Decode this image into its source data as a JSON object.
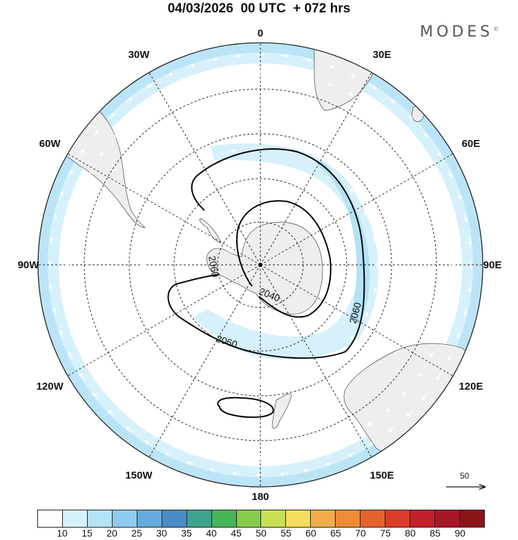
{
  "title": "04/03/2026  00 UTC  + 072 hrs",
  "brand": "MODES",
  "brand_mark": "©",
  "longitude_labels": [
    {
      "text": "0",
      "lon": 0
    },
    {
      "text": "30E",
      "lon": 30
    },
    {
      "text": "60E",
      "lon": 60
    },
    {
      "text": "90E",
      "lon": 90
    },
    {
      "text": "120E",
      "lon": 120
    },
    {
      "text": "150E",
      "lon": 150
    },
    {
      "text": "180",
      "lon": 180
    },
    {
      "text": "150W",
      "lon": -150
    },
    {
      "text": "120W",
      "lon": -120
    },
    {
      "text": "90W",
      "lon": -90
    },
    {
      "text": "60W",
      "lon": -60
    },
    {
      "text": "30W",
      "lon": -30
    }
  ],
  "contour_labels": [
    "2060",
    "2040",
    "2060",
    "2060"
  ],
  "reference_vector": {
    "label": "50",
    "icon": "arrow-right-icon"
  },
  "colorbar": {
    "colors": [
      "#ffffff",
      "#d6f1fb",
      "#b4e2f6",
      "#8ecdf0",
      "#66a9dc",
      "#4a8cc6",
      "#3ea38e",
      "#47b457",
      "#88cb4c",
      "#c6df52",
      "#f5de5a",
      "#f3ad48",
      "#ef8a35",
      "#e7612d",
      "#dc3b2b",
      "#c41f2a",
      "#a81726",
      "#8c1419"
    ],
    "labels": [
      "10",
      "15",
      "20",
      "25",
      "30",
      "35",
      "40",
      "45",
      "50",
      "55",
      "60",
      "65",
      "70",
      "75",
      "80",
      "85",
      "90"
    ]
  },
  "colors": {
    "land": "#eeeeee",
    "shade_light": "#d6f1fb",
    "shade_mid": "#b4e2f6",
    "shade_dark": "#8ecdf0"
  }
}
